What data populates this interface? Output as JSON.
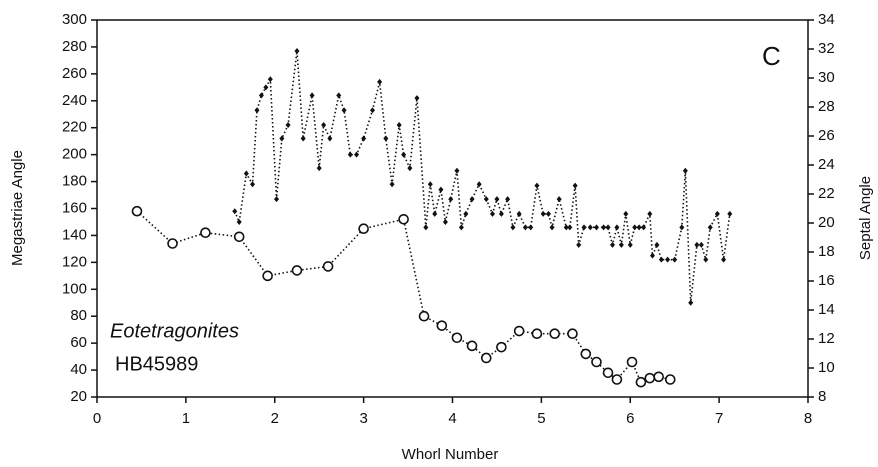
{
  "chart_data": {
    "type": "scatter",
    "xlabel": "Whorl Number",
    "ylabel": "Megastriae Angle",
    "y2label": "Septal Angle",
    "annotations": [
      "C",
      "Eotetragonites",
      "HB45989"
    ],
    "xlim": [
      0,
      8
    ],
    "xticks": [
      0,
      1,
      2,
      3,
      4,
      5,
      6,
      7,
      8
    ],
    "ylim": [
      20,
      300
    ],
    "yticks": [
      20,
      40,
      60,
      80,
      100,
      120,
      140,
      160,
      180,
      200,
      220,
      240,
      260,
      280,
      300
    ],
    "y2lim": [
      8,
      34
    ],
    "y2ticks": [
      8,
      10,
      12,
      14,
      16,
      18,
      20,
      22,
      24,
      26,
      28,
      30,
      32,
      34
    ],
    "series": [
      {
        "marker": "diamond",
        "color": "#111111",
        "x": [
          1.55,
          1.6,
          1.68,
          1.75,
          1.8,
          1.85,
          1.9,
          1.95,
          2.02,
          2.08,
          2.15,
          2.25,
          2.32,
          2.42,
          2.5,
          2.55,
          2.62,
          2.72,
          2.78,
          2.85,
          2.92,
          3.0,
          3.1,
          3.18,
          3.25,
          3.32,
          3.4,
          3.45,
          3.52,
          3.6,
          3.7,
          3.75,
          3.8,
          3.87,
          3.92,
          3.98,
          4.05,
          4.1,
          4.15,
          4.22,
          4.3,
          4.38,
          4.45,
          4.5,
          4.55,
          4.62,
          4.68,
          4.75,
          4.82,
          4.88,
          4.95,
          5.02,
          5.08,
          5.12,
          5.2,
          5.28,
          5.32,
          5.38,
          5.42,
          5.48,
          5.55,
          5.62,
          5.7,
          5.75,
          5.8,
          5.85,
          5.9,
          5.95,
          6.0,
          6.05,
          6.1,
          6.15,
          6.22,
          6.25,
          6.3,
          6.35,
          6.42,
          6.5,
          6.58,
          6.62,
          6.68,
          6.75,
          6.8,
          6.85,
          6.9,
          6.98,
          7.05,
          7.12
        ],
        "values": [
          158,
          150,
          186,
          178,
          233,
          244,
          250,
          256,
          167,
          212,
          222,
          277,
          212,
          244,
          190,
          222,
          212,
          244,
          233,
          200,
          200,
          212,
          233,
          254,
          212,
          178,
          222,
          200,
          190,
          242,
          146,
          178,
          156,
          174,
          150,
          167,
          188,
          146,
          156,
          167,
          178,
          167,
          156,
          167,
          156,
          167,
          146,
          156,
          146,
          146,
          177,
          156,
          156,
          146,
          167,
          146,
          146,
          177,
          133,
          146,
          146,
          146,
          146,
          146,
          133,
          146,
          133,
          156,
          133,
          146,
          146,
          146,
          156,
          125,
          133,
          122,
          122,
          122,
          146,
          188,
          90,
          133,
          133,
          122,
          146,
          156,
          122,
          156
        ]
      },
      {
        "marker": "circle",
        "color": "#111111",
        "x": [
          0.45,
          0.85,
          1.22,
          1.6,
          1.92,
          2.25,
          2.6,
          3.0,
          3.45,
          3.68,
          3.88,
          4.05,
          4.22,
          4.38,
          4.55,
          4.75,
          4.95,
          5.15,
          5.35,
          5.5,
          5.62,
          5.75,
          5.85,
          6.02,
          6.12,
          6.22,
          6.32,
          6.45
        ],
        "values": [
          158,
          134,
          142,
          139,
          110,
          114,
          117,
          145,
          152,
          80,
          73,
          64,
          58,
          49,
          57,
          69,
          67,
          67,
          67,
          52,
          46,
          38,
          33,
          46,
          31,
          34,
          35,
          33
        ]
      }
    ]
  }
}
